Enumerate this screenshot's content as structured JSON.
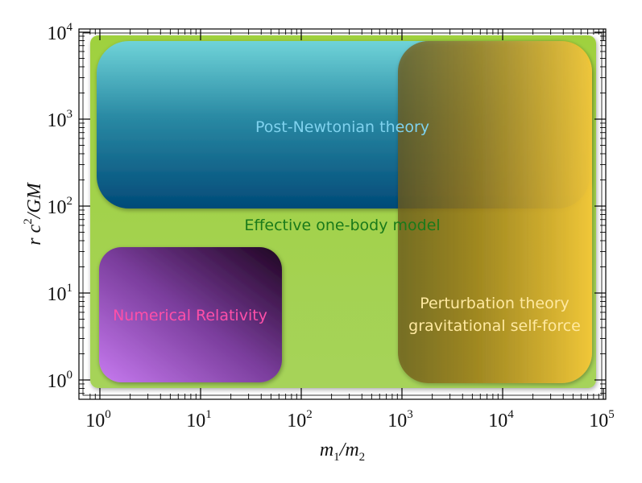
{
  "diagram": {
    "x_axis": {
      "label_main": "m",
      "label_sub1": "1",
      "label_slash": "/m",
      "label_sub2": "2",
      "scale": "log",
      "range": [
        0.8,
        100000
      ],
      "ticks": [
        {
          "value": 1,
          "base": "10",
          "exp": "0"
        },
        {
          "value": 10,
          "base": "10",
          "exp": "1"
        },
        {
          "value": 100,
          "base": "10",
          "exp": "2"
        },
        {
          "value": 1000,
          "base": "10",
          "exp": "3"
        },
        {
          "value": 10000,
          "base": "10",
          "exp": "4"
        },
        {
          "value": 100000,
          "base": "10",
          "exp": "5"
        }
      ]
    },
    "y_axis": {
      "label_r": "r c",
      "label_sup": "2",
      "label_rest": "/GM",
      "scale": "log",
      "range": [
        0.65,
        10000
      ],
      "ticks": [
        {
          "value": 1,
          "base": "10",
          "exp": "0"
        },
        {
          "value": 10,
          "base": "10",
          "exp": "1"
        },
        {
          "value": 100,
          "base": "10",
          "exp": "2"
        },
        {
          "value": 1000,
          "base": "10",
          "exp": "3"
        },
        {
          "value": 10000,
          "base": "10",
          "exp": "4"
        }
      ]
    },
    "regions": [
      {
        "key": "eob",
        "label": "Effective one-body model",
        "label_color": "#1a7a1a"
      },
      {
        "key": "pn",
        "label": "Post-Newtonian theory",
        "label_color": "#7fd2ee"
      },
      {
        "key": "nr",
        "label": "Numerical Relativity",
        "label_color": "#ff4fa8"
      },
      {
        "key": "pt",
        "label_line1": "Perturbation theory",
        "label_line2": "gravitational self-force",
        "label_color": "#ffe9a0"
      }
    ]
  }
}
